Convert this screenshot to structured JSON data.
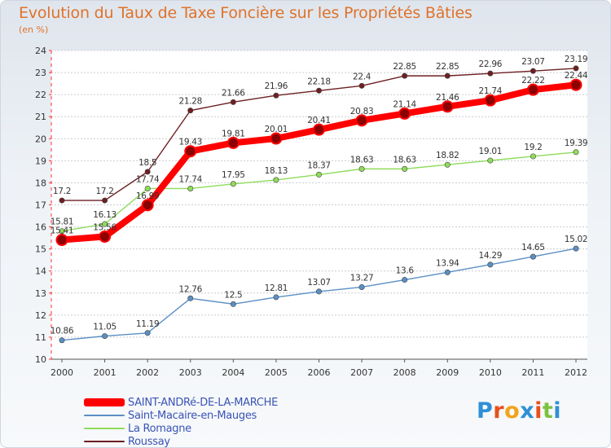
{
  "header": {
    "title": "Evolution du Taux de Taxe Foncière sur les Propriétés Bâties",
    "subtitle": "(en %)"
  },
  "chart_data": {
    "type": "line",
    "title": "Evolution du Taux de Taxe Foncière sur les Propriétés Bâties",
    "ylabel": "(en %)",
    "xlabel": "",
    "x": [
      "2000",
      "2001",
      "2002",
      "2003",
      "2004",
      "2005",
      "2006",
      "2007",
      "2008",
      "2009",
      "2010",
      "2011",
      "2012"
    ],
    "ylim": [
      10,
      24
    ],
    "yticks": [
      "10",
      "11",
      "12",
      "13",
      "14",
      "15",
      "16",
      "17",
      "18",
      "19",
      "20",
      "21",
      "22",
      "23",
      "24"
    ],
    "grid": "horizontal dashed",
    "legend_position": "bottom-left",
    "series": [
      {
        "name": "Roussay",
        "color": "#6e1f22",
        "values": [
          17.2,
          17.2,
          18.5,
          21.28,
          21.66,
          21.96,
          22.18,
          22.4,
          22.85,
          22.85,
          22.96,
          23.07,
          23.19
        ],
        "labels": [
          "17.2",
          "17.2",
          "18.5",
          "21.28",
          "21.66",
          "21.96",
          "22.18",
          "22.4",
          "22.85",
          "22.85",
          "22.96",
          "23.07",
          "23.19"
        ]
      },
      {
        "name": "La Romagne",
        "color": "#8fdc5a",
        "values": [
          15.81,
          16.13,
          17.74,
          17.74,
          17.95,
          18.13,
          18.37,
          18.63,
          18.63,
          18.82,
          19.01,
          19.2,
          19.39
        ],
        "labels": [
          "15.81",
          "16.13",
          "17.74",
          "17.74",
          "17.95",
          "18.13",
          "18.37",
          "18.63",
          "18.63",
          "18.82",
          "19.01",
          "19.2",
          "19.39"
        ]
      },
      {
        "name": "Saint-Macaire-en-Mauges",
        "color": "#5b8fc4",
        "values": [
          10.86,
          11.05,
          11.19,
          12.76,
          12.5,
          12.81,
          13.07,
          13.27,
          13.6,
          13.94,
          14.29,
          14.65,
          15.02
        ],
        "labels": [
          "10.86",
          "11.05",
          "11.19",
          "12.76",
          "12.5",
          "12.81",
          "13.07",
          "13.27",
          "13.6",
          "13.94",
          "14.29",
          "14.65",
          "15.02"
        ]
      },
      {
        "name": "SAINT-ANDRé-DE-LA-MARCHE",
        "color": "#ff0000",
        "values": [
          15.41,
          15.56,
          16.99,
          19.43,
          19.81,
          20.01,
          20.41,
          20.83,
          21.14,
          21.46,
          21.74,
          22.22,
          22.44
        ],
        "labels": [
          "15.41",
          "15.56",
          "16.99",
          "19.43",
          "19.81",
          "20.01",
          "20.41",
          "20.83",
          "21.14",
          "21.46",
          "21.74",
          "22.22",
          "22.44"
        ]
      }
    ]
  },
  "legend": {
    "items": [
      {
        "label": "SAINT-ANDRé-DE-LA-MARCHE",
        "color": "#ff0000",
        "thick": true
      },
      {
        "label": "Saint-Macaire-en-Mauges",
        "color": "#5b8fc4",
        "thick": false
      },
      {
        "label": "La Romagne",
        "color": "#8fdc5a",
        "thick": false
      },
      {
        "label": "Roussay",
        "color": "#6e1f22",
        "thick": false
      }
    ]
  },
  "logo": {
    "text": "Proxiti",
    "letter_colors": [
      "#2f8fd6",
      "#e8501c",
      "#f2a31a",
      "#2f8fd6",
      "#e8501c",
      "#7cc242",
      "#2f8fd6"
    ]
  }
}
